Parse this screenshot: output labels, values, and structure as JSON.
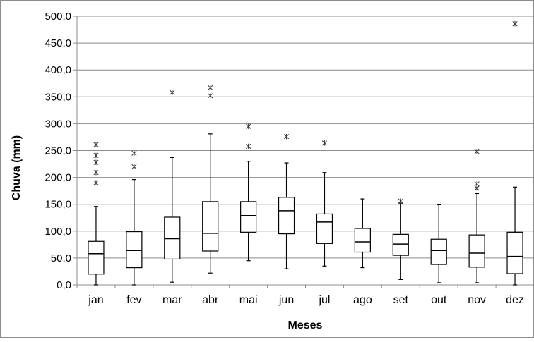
{
  "chart_data": {
    "type": "boxplot",
    "title": "",
    "xlabel": "Meses",
    "ylabel": "Chuva (mm)",
    "ylim": [
      0,
      500
    ],
    "y_ticks": [
      "0,0",
      "50,0",
      "100,0",
      "150,0",
      "200,0",
      "250,0",
      "300,0",
      "350,0",
      "400,0",
      "450,0",
      "500,0"
    ],
    "grid": "horizontal",
    "legend": "none",
    "categories": [
      "jan",
      "fev",
      "mar",
      "abr",
      "mai",
      "jun",
      "jul",
      "ago",
      "set",
      "out",
      "nov",
      "dez"
    ],
    "boxes": [
      {
        "month": "jan",
        "min": 0,
        "q1": 20,
        "median": 58,
        "q3": 81,
        "max": 146,
        "outliers": [
          190,
          209,
          228,
          241,
          261
        ]
      },
      {
        "month": "fev",
        "min": 0,
        "q1": 32,
        "median": 64,
        "q3": 99,
        "max": 196,
        "outliers": [
          220,
          245
        ]
      },
      {
        "month": "mar",
        "min": 5,
        "q1": 48,
        "median": 86,
        "q3": 126,
        "max": 237,
        "outliers": [
          358
        ]
      },
      {
        "month": "abr",
        "min": 22,
        "q1": 63,
        "median": 96,
        "q3": 155,
        "max": 281,
        "outliers": [
          352,
          367
        ]
      },
      {
        "month": "mai",
        "min": 45,
        "q1": 98,
        "median": 129,
        "q3": 155,
        "max": 230,
        "outliers": [
          258,
          295
        ]
      },
      {
        "month": "jun",
        "min": 30,
        "q1": 95,
        "median": 138,
        "q3": 163,
        "max": 227,
        "outliers": [
          276
        ]
      },
      {
        "month": "jul",
        "min": 35,
        "q1": 77,
        "median": 117,
        "q3": 132,
        "max": 209,
        "outliers": [
          264
        ]
      },
      {
        "month": "ago",
        "min": 32,
        "q1": 61,
        "median": 80,
        "q3": 105,
        "max": 160,
        "outliers": []
      },
      {
        "month": "set",
        "min": 10,
        "q1": 55,
        "median": 76,
        "q3": 94,
        "max": 152,
        "outliers": [
          156
        ]
      },
      {
        "month": "out",
        "min": 4,
        "q1": 38,
        "median": 64,
        "q3": 85,
        "max": 149,
        "outliers": []
      },
      {
        "month": "nov",
        "min": 4,
        "q1": 33,
        "median": 59,
        "q3": 93,
        "max": 170,
        "outliers": [
          180,
          188,
          248
        ]
      },
      {
        "month": "dez",
        "min": 0,
        "q1": 21,
        "median": 53,
        "q3": 98,
        "max": 182,
        "outliers": [
          486
        ]
      }
    ],
    "colors": {
      "box_stroke": "#000000",
      "grid": "#8c8c8c",
      "axis": "#8c8c8c",
      "outlier": "#333333"
    }
  }
}
